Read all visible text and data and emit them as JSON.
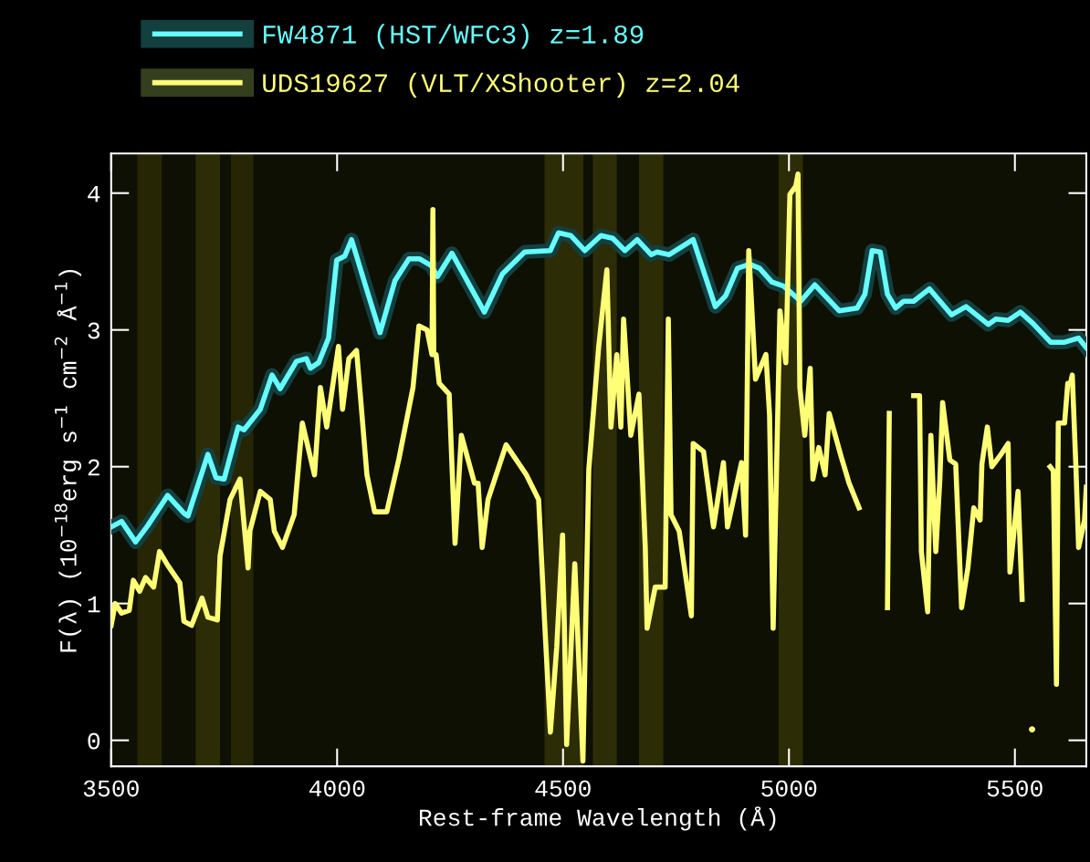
{
  "chart_data": {
    "type": "line",
    "xlabel": "Rest-frame Wavelength (Å)",
    "ylabel": "F(λ) (10$^{−18}$erg s$^{−1}$ cm$^{−2}$ Å$^{−1}$)",
    "xlim": [
      3500,
      5658
    ],
    "ylim": [
      -0.19,
      4.29
    ],
    "xticks": [
      3500,
      4000,
      4500,
      5000,
      5500
    ],
    "yticks": [
      0,
      1,
      2,
      3,
      4
    ],
    "grid": false,
    "legend": "top left",
    "marker": "none",
    "line_style": "solid",
    "series": [
      {
        "name": "FW4871 (HST/WFC3) z=1.89",
        "color": "#66ffff",
        "x": [
          3500,
          3523,
          3554,
          3581,
          3625,
          3661,
          3670,
          3714,
          3732,
          3750,
          3781,
          3794,
          3830,
          3856,
          3874,
          3910,
          3932,
          3941,
          3959,
          3981,
          3999,
          4017,
          4032,
          4066,
          4095,
          4128,
          4159,
          4182,
          4208,
          4222,
          4254,
          4326,
          4366,
          4415,
          4472,
          4490,
          4517,
          4548,
          4584,
          4610,
          4637,
          4664,
          4695,
          4708,
          4735,
          4788,
          4837,
          4860,
          4886,
          4913,
          4935,
          4962,
          4988,
          5026,
          5057,
          5111,
          5151,
          5168,
          5184,
          5202,
          5218,
          5236,
          5254,
          5276,
          5311,
          5360,
          5392,
          5441,
          5458,
          5485,
          5512,
          5539,
          5579,
          5610,
          5641,
          5658
        ],
        "values": [
          1.56,
          1.6,
          1.45,
          1.57,
          1.79,
          1.66,
          1.64,
          2.09,
          1.92,
          1.91,
          2.29,
          2.27,
          2.42,
          2.67,
          2.57,
          2.77,
          2.79,
          2.72,
          2.76,
          2.94,
          3.51,
          3.54,
          3.66,
          3.29,
          2.98,
          3.36,
          3.52,
          3.52,
          3.47,
          3.39,
          3.56,
          3.13,
          3.41,
          3.57,
          3.58,
          3.71,
          3.69,
          3.58,
          3.69,
          3.67,
          3.58,
          3.66,
          3.55,
          3.57,
          3.55,
          3.66,
          3.17,
          3.25,
          3.45,
          3.48,
          3.45,
          3.35,
          3.32,
          3.21,
          3.33,
          3.14,
          3.16,
          3.26,
          3.58,
          3.57,
          3.26,
          3.16,
          3.21,
          3.21,
          3.3,
          3.11,
          3.17,
          3.04,
          3.08,
          3.07,
          3.13,
          3.05,
          2.91,
          2.91,
          2.94,
          2.87
        ]
      },
      {
        "name": "UDS19627 (VLT/XShooter) z=2.04",
        "color": "#ffff77",
        "x": [
          3500,
          3509,
          3523,
          3540,
          3549,
          3563,
          3576,
          3594,
          3607,
          3625,
          3652,
          3661,
          3678,
          3701,
          3714,
          3735,
          3741,
          3763,
          3785,
          3803,
          3807,
          3830,
          3852,
          3861,
          3879,
          3905,
          3923,
          3950,
          3963,
          3977,
          4003,
          4012,
          4026,
          4043,
          4052,
          4066,
          4083,
          4110,
          4137,
          4168,
          4181,
          4199,
          4210,
          4212,
          4214,
          4219,
          4226,
          4248,
          4261,
          4275,
          4304,
          4312,
          4321,
          4334,
          4374,
          4419,
          4446,
          4459,
          4472,
          4486,
          4499,
          4508,
          4526,
          4544,
          4557,
          4579,
          4597,
          4606,
          4619,
          4628,
          4634,
          4650,
          4668,
          4682,
          4686,
          4704,
          4726,
          4733,
          4739,
          4757,
          4784,
          4788,
          4811,
          4833,
          4855,
          4864,
          4895,
          4904,
          4911,
          4926,
          4949,
          4957,
          4965,
          4980,
          4993,
          5002,
          5015,
          5020,
          5024,
          5035,
          5047,
          5053,
          5066,
          5080,
          5089,
          5115,
          5133,
          5155,
          5160,
          5185,
          5209,
          5218,
          5222,
          5228,
          5250,
          5271,
          5276,
          5289,
          5293,
          5307,
          5314,
          5325,
          5334,
          5340,
          5356,
          5369,
          5382,
          5396,
          5409,
          5423,
          5427,
          5439,
          5449,
          5467,
          5485,
          5489,
          5507,
          5516,
          5525,
          5531,
          5538,
          5543,
          5560,
          5574,
          5578,
          5585,
          5592,
          5596,
          5610,
          5617,
          5623,
          5627,
          5635,
          5641,
          5654,
          5658
        ],
        "values": [
          0.84,
          1.0,
          0.93,
          0.95,
          1.17,
          1.09,
          1.19,
          1.12,
          1.38,
          1.28,
          1.15,
          0.87,
          0.84,
          1.04,
          0.9,
          0.88,
          1.35,
          1.76,
          1.91,
          1.26,
          1.53,
          1.82,
          1.76,
          1.53,
          1.41,
          1.65,
          2.32,
          1.94,
          2.58,
          2.29,
          2.88,
          2.42,
          2.79,
          2.85,
          2.5,
          1.94,
          1.67,
          1.67,
          2.06,
          2.58,
          3.03,
          3.0,
          2.82,
          3.88,
          2.82,
          2.82,
          2.61,
          2.53,
          1.44,
          2.23,
          1.88,
          1.88,
          1.41,
          1.76,
          2.16,
          1.94,
          1.76,
          0.88,
          0.06,
          0.68,
          1.5,
          -0.03,
          1.29,
          -0.15,
          1.98,
          2.88,
          3.44,
          2.29,
          2.82,
          2.29,
          3.08,
          2.23,
          2.53,
          1.41,
          0.82,
          1.12,
          1.12,
          3.08,
          1.65,
          1.53,
          0.91,
          2.17,
          2.11,
          1.56,
          2.03,
          1.56,
          2.03,
          1.5,
          3.58,
          2.64,
          2.82,
          2.38,
          0.82,
          3.14,
          2.76,
          3.99,
          4.05,
          4.14,
          2.58,
          2.23,
          2.72,
          1.91,
          2.14,
          1.94,
          2.39,
          2.08,
          1.88,
          1.7,
          null,
          null,
          null,
          0.97,
          2.39,
          null,
          null,
          null,
          2.52,
          2.52,
          1.38,
          0.94,
          2.23,
          1.38,
          1.91,
          2.47,
          2.05,
          2.02,
          0.97,
          1.26,
          1.7,
          1.61,
          2.02,
          2.29,
          2.0,
          2.08,
          2.17,
          1.23,
          1.82,
          1.03,
          null,
          null,
          0.08,
          null,
          null,
          null,
          2.0,
          1.97,
          0.41,
          2.32,
          2.32,
          2.61,
          2.61,
          2.67,
          2.0,
          1.41,
          1.61,
          1.85
        ]
      }
    ],
    "bands": [
      {
        "axis": "x",
        "from": 3558,
        "to": 3612,
        "color": "#262605"
      },
      {
        "axis": "x",
        "from": 3687,
        "to": 3741,
        "color": "#2c2c06"
      },
      {
        "axis": "x",
        "from": 3765,
        "to": 3815,
        "color": "#262605"
      },
      {
        "axis": "x",
        "from": 4459,
        "to": 4545,
        "color": "#2c2c06"
      },
      {
        "axis": "x",
        "from": 4566,
        "to": 4619,
        "color": "#2c2c06"
      },
      {
        "axis": "x",
        "from": 4668,
        "to": 4722,
        "color": "#2c2c06"
      },
      {
        "axis": "x",
        "from": 4977,
        "to": 5031,
        "color": "#2c2c06"
      }
    ]
  }
}
